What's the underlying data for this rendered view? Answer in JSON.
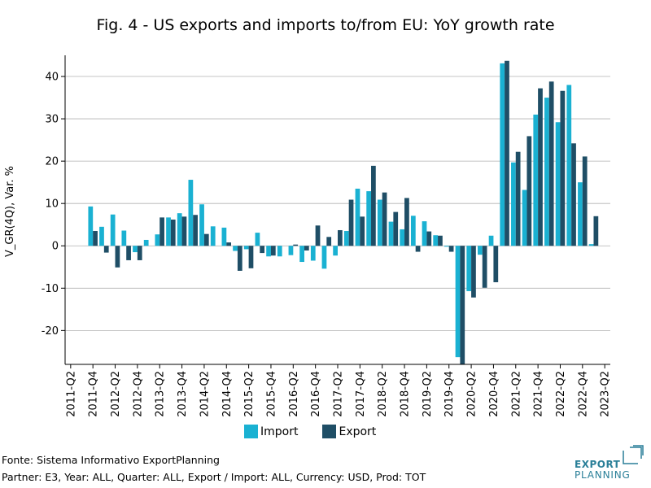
{
  "title": "Fig. 4 - US exports and imports to/from EU: YoY growth rate",
  "colors": {
    "import": "#1ab1d2",
    "export": "#1f4e66",
    "grid": "#b0b0b0",
    "logo": "#2a7f98"
  },
  "footer": {
    "source": "Fonte: Sistema Informativo ExportPlanning",
    "filters": "Partner: E3, Year: ALL, Quarter: ALL, Export / Import: ALL, Currency: USD, Prod: TOT"
  },
  "logo": {
    "line1": "EXPORT",
    "line2": "PLANNING"
  },
  "chart_data": {
    "type": "bar",
    "ylabel": "V_GR(4Q), Var. %",
    "ylim": [
      -28,
      45
    ],
    "yticks": [
      -20,
      -10,
      0,
      10,
      20,
      30,
      40
    ],
    "ytick_labels": [
      "-20",
      "-10",
      "0",
      "10",
      "20",
      "30",
      "40"
    ],
    "grid": true,
    "legend_position": "bottom",
    "x_tick_labels": [
      "2011-Q2",
      "2011-Q4",
      "2012-Q2",
      "2012-Q4",
      "2013-Q2",
      "2013-Q4",
      "2014-Q2",
      "2014-Q4",
      "2015-Q2",
      "2015-Q4",
      "2016-Q2",
      "2016-Q4",
      "2017-Q2",
      "2017-Q4",
      "2018-Q2",
      "2018-Q4",
      "2019-Q2",
      "2019-Q4",
      "2020-Q2",
      "2020-Q4",
      "2021-Q2",
      "2021-Q4",
      "2022-Q2",
      "2022-Q4",
      "2023-Q2"
    ],
    "categories": [
      "2011-Q2",
      "2011-Q3",
      "2011-Q4",
      "2012-Q1",
      "2012-Q2",
      "2012-Q3",
      "2012-Q4",
      "2013-Q1",
      "2013-Q2",
      "2013-Q3",
      "2013-Q4",
      "2014-Q1",
      "2014-Q2",
      "2014-Q3",
      "2014-Q4",
      "2015-Q1",
      "2015-Q2",
      "2015-Q3",
      "2015-Q4",
      "2016-Q1",
      "2016-Q2",
      "2016-Q3",
      "2016-Q4",
      "2017-Q1",
      "2017-Q2",
      "2017-Q3",
      "2017-Q4",
      "2018-Q1",
      "2018-Q2",
      "2018-Q3",
      "2018-Q4",
      "2019-Q1",
      "2019-Q2",
      "2019-Q3",
      "2019-Q4",
      "2020-Q1",
      "2020-Q2",
      "2020-Q3",
      "2020-Q4",
      "2021-Q1",
      "2021-Q2",
      "2021-Q3",
      "2021-Q4",
      "2022-Q1",
      "2022-Q2",
      "2022-Q3",
      "2022-Q4",
      "2023-Q1",
      "2023-Q2"
    ],
    "series": [
      {
        "name": "Import",
        "values": [
          null,
          null,
          9.3,
          4.5,
          7.4,
          3.6,
          -1.5,
          1.4,
          2.7,
          6.7,
          7.7,
          15.6,
          9.8,
          4.6,
          4.3,
          -1.2,
          -0.8,
          3.1,
          -2.5,
          -2.5,
          -2.2,
          -3.8,
          -3.5,
          -5.4,
          -2.3,
          3.5,
          13.5,
          12.9,
          10.9,
          5.7,
          3.9,
          7.1,
          5.8,
          2.5,
          -0.2,
          -26.3,
          -10.7,
          -2.1,
          2.4,
          43.1,
          19.7,
          13.2,
          31.0,
          35.0,
          29.2,
          38.0,
          15.0,
          0.4,
          null
        ]
      },
      {
        "name": "Export",
        "values": [
          null,
          null,
          3.5,
          -1.6,
          -5.1,
          -3.4,
          -3.4,
          null,
          6.7,
          6.2,
          6.9,
          7.3,
          2.8,
          null,
          0.8,
          -5.9,
          -5.3,
          -1.7,
          -2.3,
          null,
          0.3,
          -1.1,
          4.8,
          2.1,
          3.7,
          10.9,
          6.9,
          18.9,
          12.6,
          8.0,
          11.3,
          -1.4,
          3.4,
          2.4,
          -1.4,
          -28.0,
          -12.2,
          -9.9,
          -8.6,
          43.7,
          22.2,
          25.9,
          37.2,
          38.8,
          36.6,
          24.2,
          21.1,
          7.0,
          null
        ]
      }
    ]
  }
}
